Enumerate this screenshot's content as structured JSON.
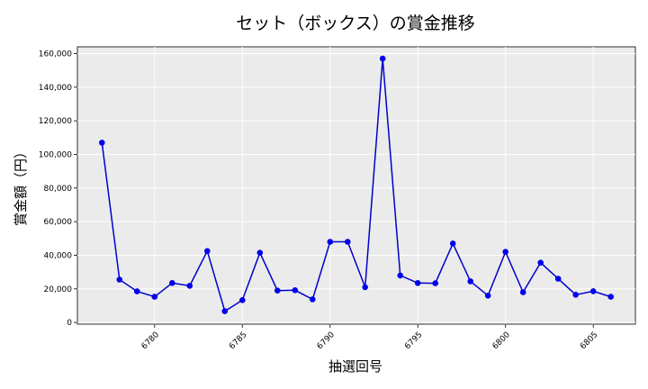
{
  "chart_data": {
    "type": "line",
    "title": "セット（ボックス）の賞金推移",
    "xlabel": "抽選回号",
    "ylabel": "賞金額（円）",
    "xlim": [
      6775.6,
      6807.4
    ],
    "ylim": [
      -1000,
      164000
    ],
    "x_ticks": [
      6780,
      6785,
      6790,
      6795,
      6800,
      6805
    ],
    "y_ticks": [
      0,
      20000,
      40000,
      60000,
      80000,
      100000,
      120000,
      140000,
      160000
    ],
    "y_tick_labels": [
      "0",
      "20,000",
      "40,000",
      "60,000",
      "80,000",
      "100,000",
      "120,000",
      "140,000",
      "160,000"
    ],
    "grid": true,
    "colors": {
      "line": "#0000cc",
      "marker": "#0000ee",
      "plot_bg": "#ebebeb",
      "grid": "#ffffff"
    },
    "series": [
      {
        "x": [
          6777,
          6778,
          6779,
          6780,
          6781,
          6782,
          6783,
          6784,
          6785,
          6786,
          6787,
          6788,
          6789,
          6790,
          6791,
          6792,
          6793,
          6794,
          6795,
          6796,
          6797,
          6798,
          6799,
          6800,
          6801,
          6802,
          6803,
          6804,
          6805,
          6806
        ],
        "values": [
          107000,
          25500,
          18500,
          15300,
          23500,
          21800,
          42500,
          6700,
          13300,
          41500,
          19000,
          19200,
          13800,
          48000,
          48000,
          21000,
          157000,
          28000,
          23500,
          23300,
          47000,
          24500,
          16000,
          42000,
          18000,
          35600,
          26000,
          16500,
          18600,
          15300
        ]
      }
    ]
  }
}
